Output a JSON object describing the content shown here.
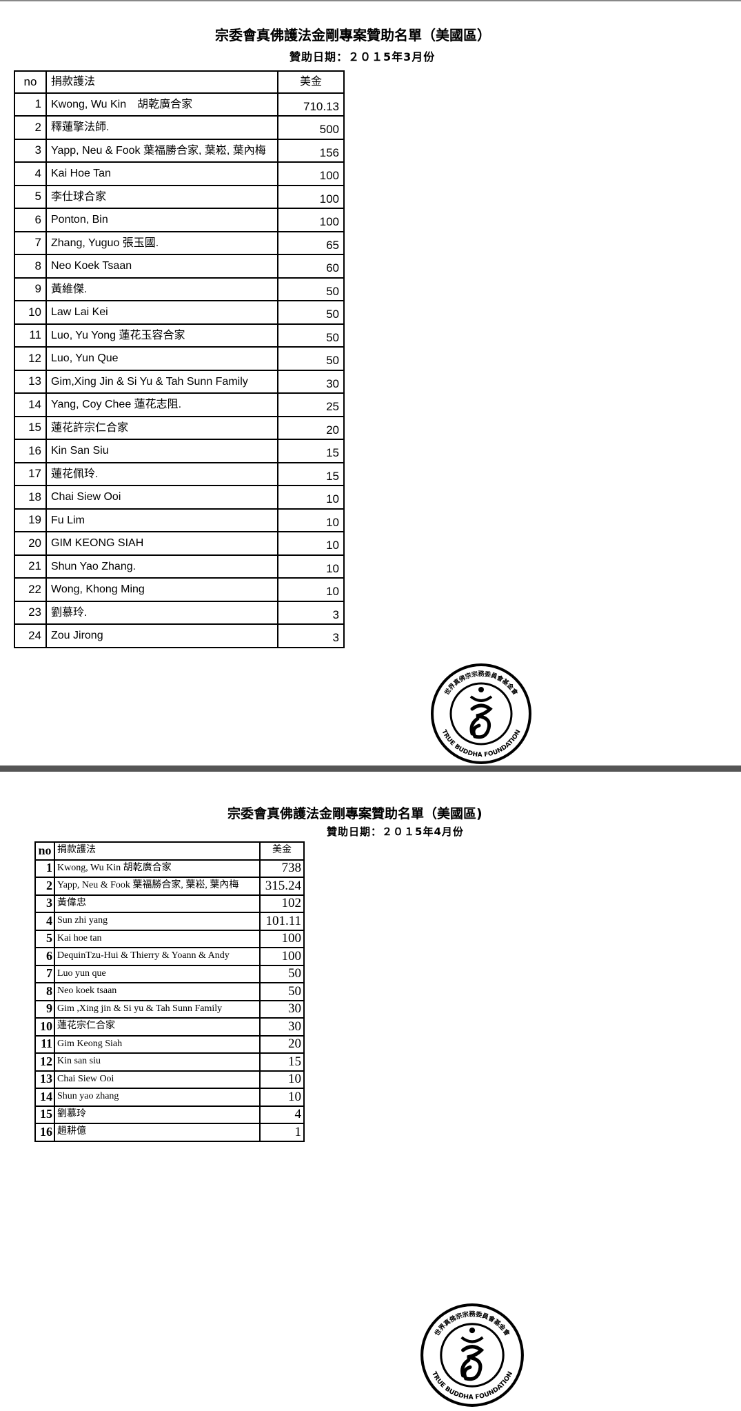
{
  "pages": [
    {
      "title": "宗委會真佛護法金剛專案贊助名單（美國區）",
      "subtitle": "贊助日期：２０１5年3月份",
      "headers": {
        "no": "no",
        "name": "捐款護法",
        "amount": "美金"
      },
      "rows": [
        {
          "no": "1",
          "name": "Kwong, Wu Kin　胡乾廣合家",
          "amount": "710.13"
        },
        {
          "no": "2",
          "name": "釋蓮擎法師.",
          "amount": "500"
        },
        {
          "no": "3",
          "name": "Yapp, Neu & Fook 葉福勝合家, 葉崧, 葉內梅",
          "amount": "156"
        },
        {
          "no": "4",
          "name": "Kai Hoe Tan",
          "amount": "100"
        },
        {
          "no": "5",
          "name": "李仕球合家",
          "amount": "100"
        },
        {
          "no": "6",
          "name": "Ponton, Bin",
          "amount": "100"
        },
        {
          "no": "7",
          "name": "Zhang, Yuguo 張玉國.",
          "amount": "65"
        },
        {
          "no": "8",
          "name": "Neo Koek Tsaan",
          "amount": "60"
        },
        {
          "no": "9",
          "name": "黃維傑.",
          "amount": "50"
        },
        {
          "no": "10",
          "name": "Law Lai Kei",
          "amount": "50"
        },
        {
          "no": "11",
          "name": "Luo, Yu Yong 蓮花玉容合家",
          "amount": "50"
        },
        {
          "no": "12",
          "name": "Luo, Yun Que",
          "amount": "50"
        },
        {
          "no": "13",
          "name": "Gim,Xing Jin & Si Yu & Tah Sunn Family",
          "amount": "30"
        },
        {
          "no": "14",
          "name": "Yang, Coy Chee 蓮花志阻.",
          "amount": "25"
        },
        {
          "no": "15",
          "name": " 蓮花許宗仁合家",
          "amount": "20"
        },
        {
          "no": "16",
          "name": "Kin San Siu",
          "amount": "15"
        },
        {
          "no": "17",
          "name": "蓮花佩玲.",
          "amount": "15"
        },
        {
          "no": "18",
          "name": "Chai Siew Ooi",
          "amount": "10"
        },
        {
          "no": "19",
          "name": "Fu Lim",
          "amount": "10"
        },
        {
          "no": "20",
          "name": "GIM KEONG SIAH",
          "amount": "10"
        },
        {
          "no": "21",
          "name": "Shun Yao Zhang.",
          "amount": "10"
        },
        {
          "no": "22",
          "name": "Wong, Khong Ming",
          "amount": "10"
        },
        {
          "no": "23",
          "name": "劉慕玲.",
          "amount": "3"
        },
        {
          "no": "24",
          "name": "Zou Jirong",
          "amount": "3"
        }
      ]
    },
    {
      "title": "宗委會真佛護法金剛專案贊助名單（美國區)",
      "subtitle": "贊助日期：２０１5年4月份",
      "headers": {
        "no": "no",
        "name": "捐款護法",
        "amount": "美金"
      },
      "rows": [
        {
          "no": "1",
          "name": "Kwong, Wu Kin  胡乾廣合家",
          "amount": "738"
        },
        {
          "no": "2",
          "name": "Yapp, Neu & Fook 葉福勝合家, 葉崧, 葉內梅",
          "amount": "315.24"
        },
        {
          "no": "3",
          "name": "黃偉忠",
          "amount": "102"
        },
        {
          "no": "4",
          "name": "Sun zhi yang",
          "amount": "101.11"
        },
        {
          "no": "5",
          "name": "Kai hoe tan",
          "amount": "100"
        },
        {
          "no": "6",
          "name": "DequinTzu-Hui & Thierry & Yoann & Andy",
          "amount": "100"
        },
        {
          "no": "7",
          "name": "Luo yun que",
          "amount": "50"
        },
        {
          "no": "8",
          "name": "Neo koek tsaan",
          "amount": "50"
        },
        {
          "no": "9",
          "name": "Gim ,Xing jin & Si yu & Tah Sunn Family",
          "amount": "30"
        },
        {
          "no": "10",
          "name": "蓮花宗仁合家",
          "amount": "30"
        },
        {
          "no": "11",
          "name": "Gim Keong Siah",
          "amount": "20"
        },
        {
          "no": "12",
          "name": "Kin san siu",
          "amount": "15"
        },
        {
          "no": "13",
          "name": "Chai Siew Ooi",
          "amount": "10"
        },
        {
          "no": "14",
          "name": "Shun yao zhang",
          "amount": "10"
        },
        {
          "no": "15",
          "name": "劉慕玲",
          "amount": "4"
        },
        {
          "no": "16",
          "name": "趙耕億",
          "amount": "1"
        }
      ]
    }
  ],
  "seal": {
    "icon": "true-buddha-foundation-seal",
    "text_en": "TRUE BUDDHA FOUNDATION",
    "text_zh": "世界真佛宗宗務委員會基金會"
  }
}
